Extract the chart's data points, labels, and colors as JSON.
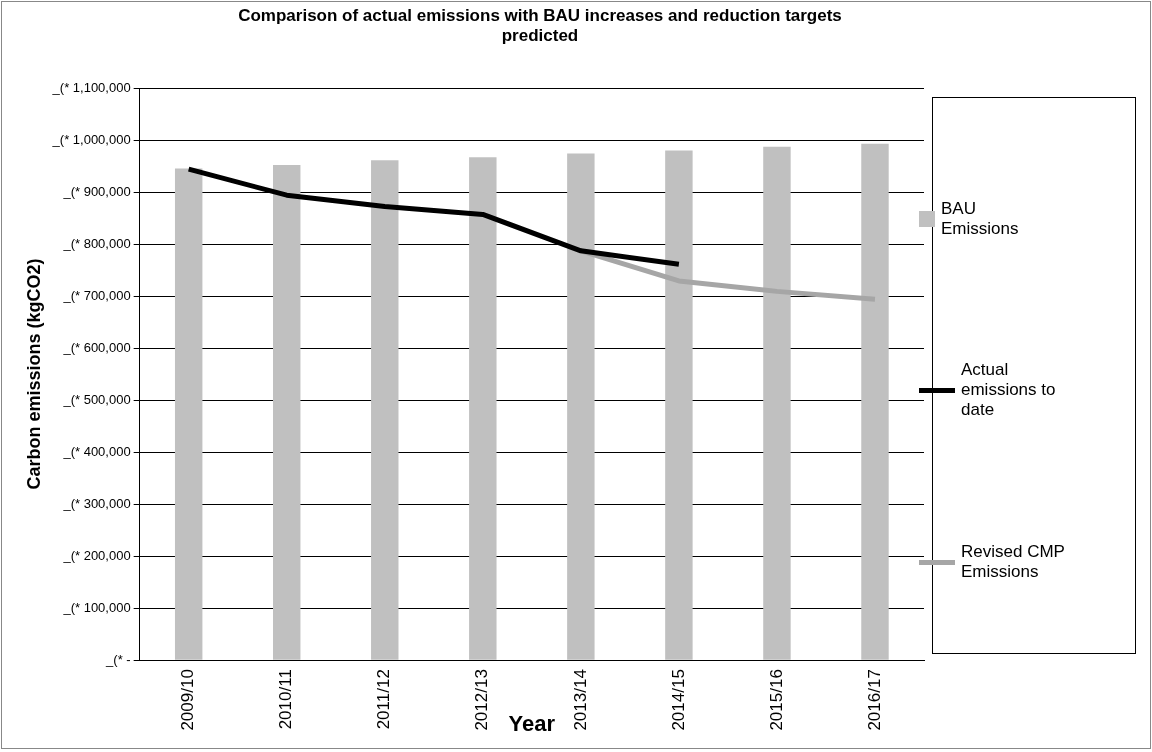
{
  "chart_data": {
    "type": "bar",
    "title": "Comparison of actual emissions with BAU increases and reduction targets predicted",
    "xlabel": "Year",
    "ylabel": "Carbon emissions (kgCO2)",
    "categories": [
      "2009/10",
      "2010/11",
      "2011/12",
      "2012/13",
      "2013/14",
      "2014/15",
      "2015/16",
      "2016/17"
    ],
    "series": [
      {
        "name": "BAU Emissions",
        "color": "#c0c0c0",
        "values": [
          945000,
          952000,
          961000,
          967000,
          974000,
          980000,
          987000,
          993000
        ]
      },
      {
        "name": "Actual emissions to date",
        "type": "line",
        "color": "#000000",
        "values": [
          944000,
          894000,
          872000,
          857000,
          787000,
          761000,
          null,
          null
        ]
      },
      {
        "name": "Revised CMP Emissions",
        "type": "line",
        "color": "#a6a6a6",
        "values": [
          null,
          null,
          null,
          null,
          787000,
          729000,
          709000,
          694000
        ]
      }
    ],
    "ylim": [
      0,
      1100000
    ],
    "yticks": [
      {
        "value": 0,
        "label": "_(* -"
      },
      {
        "value": 100000,
        "label": "_(* 100,000"
      },
      {
        "value": 200000,
        "label": "_(* 200,000"
      },
      {
        "value": 300000,
        "label": "_(* 300,000"
      },
      {
        "value": 400000,
        "label": "_(* 400,000"
      },
      {
        "value": 500000,
        "label": "_(* 500,000"
      },
      {
        "value": 600000,
        "label": "_(* 600,000"
      },
      {
        "value": 700000,
        "label": "_(* 700,000"
      },
      {
        "value": 800000,
        "label": "_(* 800,000"
      },
      {
        "value": 900000,
        "label": "_(* 900,000"
      },
      {
        "value": 1000000,
        "label": "_(* 1,000,000"
      },
      {
        "value": 1100000,
        "label": "_(* 1,100,000"
      }
    ],
    "grid": "y",
    "legend": "right",
    "marker": "none",
    "line_style": "solid"
  }
}
